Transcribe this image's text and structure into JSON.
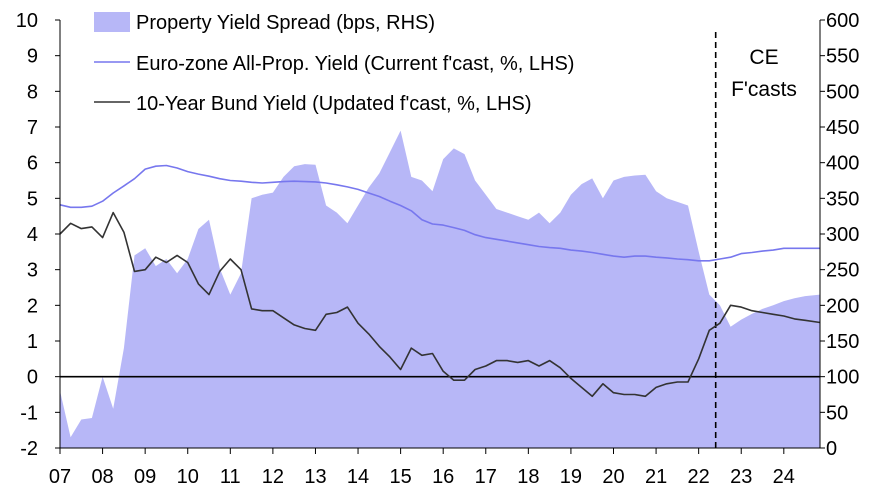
{
  "chart_data": {
    "type": "area",
    "title": "",
    "xlabel": "",
    "ylabel_left": "",
    "ylabel_right": "",
    "x_tick_labels": [
      "07",
      "08",
      "09",
      "10",
      "11",
      "12",
      "13",
      "14",
      "15",
      "16",
      "17",
      "18",
      "19",
      "20",
      "21",
      "22",
      "23",
      "24"
    ],
    "x_range": [
      2007.0,
      2024.85
    ],
    "ylim_left": [
      -2,
      10
    ],
    "left_ticks": [
      "-2",
      "-1",
      "0",
      "1",
      "2",
      "3",
      "4",
      "5",
      "6",
      "7",
      "8",
      "9",
      "10"
    ],
    "ylim_right": [
      0,
      600
    ],
    "right_ticks": [
      "0",
      "50",
      "100",
      "150",
      "200",
      "250",
      "300",
      "350",
      "400",
      "450",
      "500",
      "550",
      "600"
    ],
    "zero_line": 0,
    "forecast_start": 2022.4,
    "forecast_label": [
      "CE",
      "F'casts"
    ],
    "legend_position": "top-left",
    "colors": {
      "spread_fill": "#b7b7f7",
      "euro_line": "#7777ee",
      "bund_line": "#333333",
      "axis": "#000000"
    },
    "series": [
      {
        "name": "Property Yield Spread (bps, RHS)",
        "type": "area",
        "axis": "right",
        "x": [
          2007.0,
          2007.25,
          2007.5,
          2007.75,
          2008.0,
          2008.25,
          2008.5,
          2008.75,
          2009.0,
          2009.25,
          2009.5,
          2009.75,
          2010.0,
          2010.25,
          2010.5,
          2010.75,
          2011.0,
          2011.25,
          2011.5,
          2011.75,
          2012.0,
          2012.25,
          2012.5,
          2012.75,
          2013.0,
          2013.25,
          2013.5,
          2013.75,
          2014.0,
          2014.25,
          2014.5,
          2014.75,
          2015.0,
          2015.25,
          2015.5,
          2015.75,
          2016.0,
          2016.25,
          2016.5,
          2016.75,
          2017.0,
          2017.25,
          2017.5,
          2017.75,
          2018.0,
          2018.25,
          2018.5,
          2018.75,
          2019.0,
          2019.25,
          2019.5,
          2019.75,
          2020.0,
          2020.25,
          2020.5,
          2020.75,
          2021.0,
          2021.25,
          2021.5,
          2021.75,
          2022.0,
          2022.25,
          2022.5,
          2022.75,
          2023.0,
          2023.25,
          2023.5,
          2023.75,
          2024.0,
          2024.25,
          2024.5,
          2024.85
        ],
        "values": [
          80,
          15,
          40,
          42,
          100,
          55,
          140,
          270,
          280,
          255,
          265,
          245,
          265,
          307,
          320,
          252,
          215,
          245,
          350,
          355,
          358,
          380,
          395,
          398,
          397,
          340,
          330,
          315,
          340,
          365,
          385,
          415,
          445,
          380,
          375,
          360,
          405,
          420,
          412,
          375,
          355,
          335,
          330,
          325,
          320,
          330,
          315,
          330,
          355,
          370,
          378,
          350,
          375,
          380,
          382,
          383,
          360,
          350,
          345,
          340,
          275,
          215,
          200,
          170,
          180,
          188,
          195,
          200,
          206,
          210,
          213,
          215
        ]
      },
      {
        "name": "Euro-zone All-Prop. Yield (Current f'cast, %, LHS)",
        "type": "line",
        "axis": "left",
        "x": [
          2007.0,
          2007.25,
          2007.5,
          2007.75,
          2008.0,
          2008.25,
          2008.5,
          2008.75,
          2009.0,
          2009.25,
          2009.5,
          2009.75,
          2010.0,
          2010.25,
          2010.5,
          2010.75,
          2011.0,
          2011.25,
          2011.5,
          2011.75,
          2012.0,
          2012.25,
          2012.5,
          2012.75,
          2013.0,
          2013.25,
          2013.5,
          2013.75,
          2014.0,
          2014.25,
          2014.5,
          2014.75,
          2015.0,
          2015.25,
          2015.5,
          2015.75,
          2016.0,
          2016.25,
          2016.5,
          2016.75,
          2017.0,
          2017.25,
          2017.5,
          2017.75,
          2018.0,
          2018.25,
          2018.5,
          2018.75,
          2019.0,
          2019.25,
          2019.5,
          2019.75,
          2020.0,
          2020.25,
          2020.5,
          2020.75,
          2021.0,
          2021.25,
          2021.5,
          2021.75,
          2022.0,
          2022.25,
          2022.5,
          2022.75,
          2023.0,
          2023.25,
          2023.5,
          2023.75,
          2024.0,
          2024.25,
          2024.5,
          2024.85
        ],
        "values": [
          4.82,
          4.75,
          4.75,
          4.78,
          4.92,
          5.15,
          5.35,
          5.55,
          5.82,
          5.9,
          5.92,
          5.85,
          5.75,
          5.68,
          5.62,
          5.55,
          5.5,
          5.48,
          5.45,
          5.43,
          5.45,
          5.47,
          5.48,
          5.47,
          5.46,
          5.43,
          5.38,
          5.32,
          5.25,
          5.15,
          5.05,
          4.92,
          4.8,
          4.65,
          4.4,
          4.28,
          4.25,
          4.18,
          4.1,
          3.98,
          3.9,
          3.85,
          3.8,
          3.75,
          3.7,
          3.65,
          3.62,
          3.6,
          3.55,
          3.52,
          3.48,
          3.43,
          3.38,
          3.35,
          3.38,
          3.38,
          3.35,
          3.33,
          3.3,
          3.28,
          3.25,
          3.25,
          3.3,
          3.35,
          3.45,
          3.48,
          3.52,
          3.55,
          3.6,
          3.6,
          3.6,
          3.6
        ]
      },
      {
        "name": "10-Year Bund Yield (Updated f'cast, %, LHS)",
        "type": "line",
        "axis": "left",
        "x": [
          2007.0,
          2007.25,
          2007.5,
          2007.75,
          2008.0,
          2008.25,
          2008.5,
          2008.75,
          2009.0,
          2009.25,
          2009.5,
          2009.75,
          2010.0,
          2010.25,
          2010.5,
          2010.75,
          2011.0,
          2011.25,
          2011.5,
          2011.75,
          2012.0,
          2012.25,
          2012.5,
          2012.75,
          2013.0,
          2013.25,
          2013.5,
          2013.75,
          2014.0,
          2014.25,
          2014.5,
          2014.75,
          2015.0,
          2015.25,
          2015.5,
          2015.75,
          2016.0,
          2016.25,
          2016.5,
          2016.75,
          2017.0,
          2017.25,
          2017.5,
          2017.75,
          2018.0,
          2018.25,
          2018.5,
          2018.75,
          2019.0,
          2019.25,
          2019.5,
          2019.75,
          2020.0,
          2020.25,
          2020.5,
          2020.75,
          2021.0,
          2021.25,
          2021.5,
          2021.75,
          2022.0,
          2022.25,
          2022.5,
          2022.75,
          2023.0,
          2023.25,
          2023.5,
          2023.75,
          2024.0,
          2024.25,
          2024.5,
          2024.85
        ],
        "values": [
          4.0,
          4.3,
          4.15,
          4.2,
          3.9,
          4.6,
          4.05,
          2.95,
          3.0,
          3.35,
          3.2,
          3.4,
          3.2,
          2.6,
          2.3,
          2.95,
          3.3,
          3.0,
          1.9,
          1.85,
          1.85,
          1.65,
          1.45,
          1.35,
          1.3,
          1.75,
          1.8,
          1.95,
          1.5,
          1.2,
          0.85,
          0.55,
          0.2,
          0.8,
          0.6,
          0.65,
          0.15,
          -0.1,
          -0.1,
          0.2,
          0.3,
          0.45,
          0.45,
          0.4,
          0.45,
          0.3,
          0.45,
          0.25,
          -0.05,
          -0.3,
          -0.55,
          -0.2,
          -0.45,
          -0.5,
          -0.5,
          -0.55,
          -0.3,
          -0.2,
          -0.15,
          -0.15,
          0.5,
          1.3,
          1.5,
          2.0,
          1.95,
          1.85,
          1.8,
          1.75,
          1.7,
          1.62,
          1.58,
          1.52
        ]
      }
    ]
  }
}
